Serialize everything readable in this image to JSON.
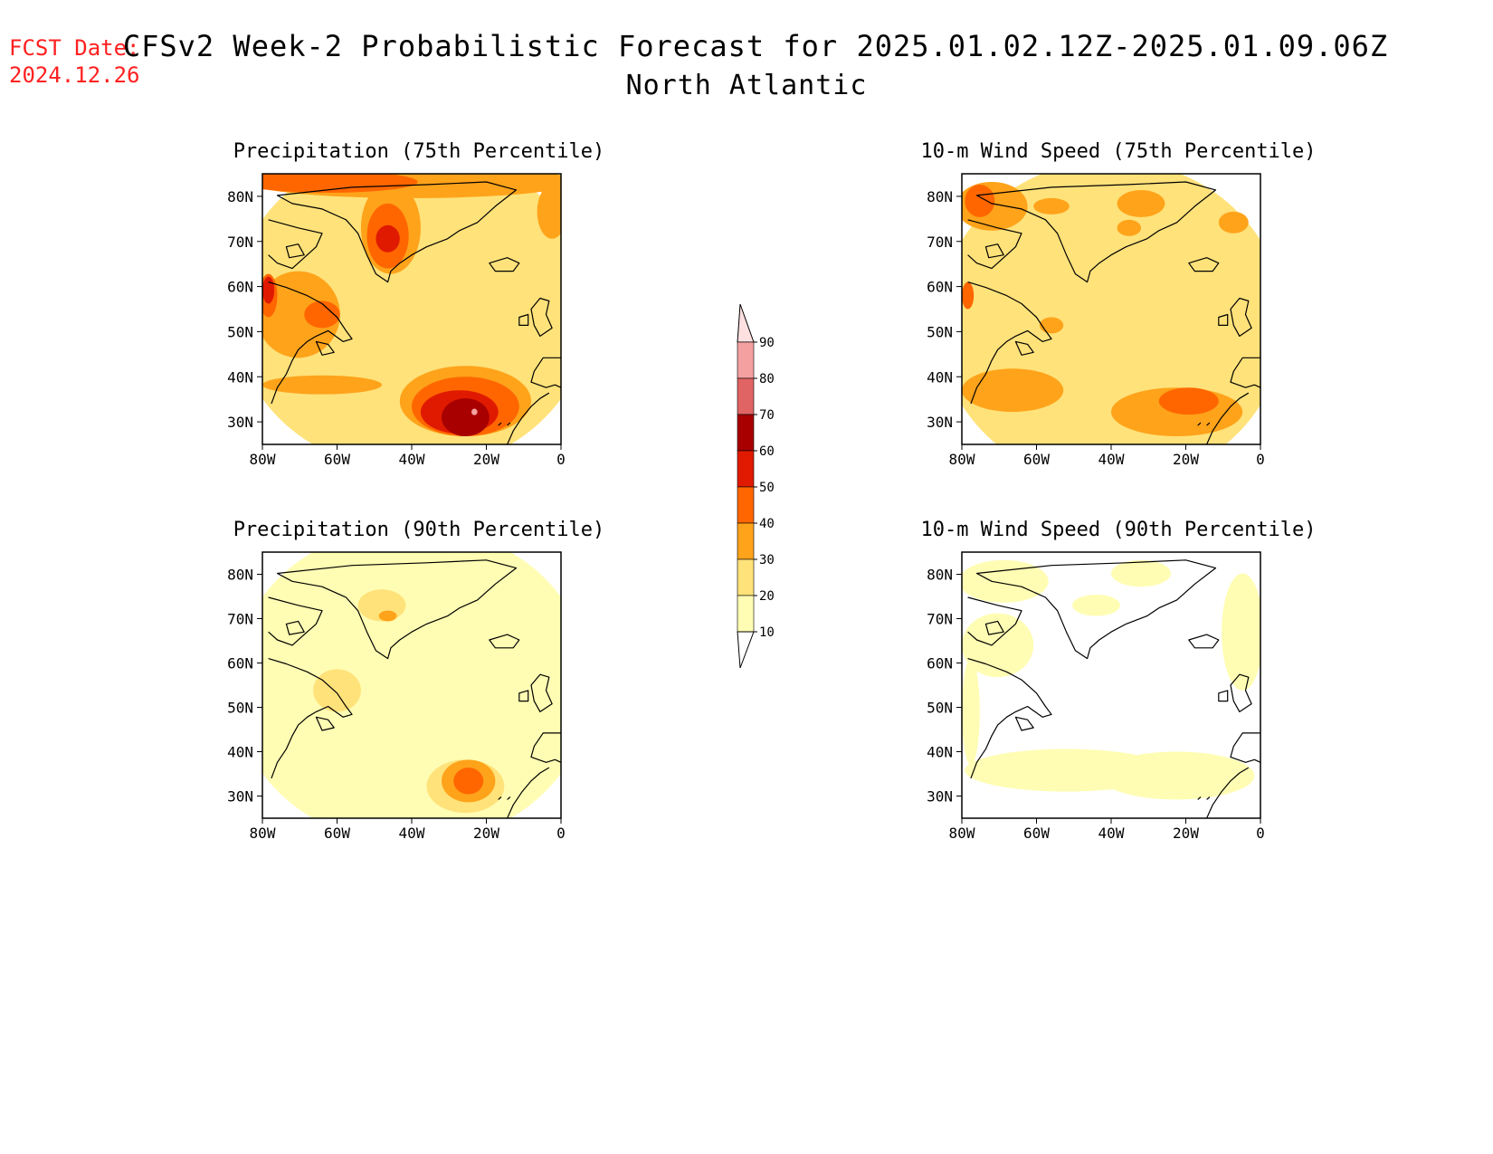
{
  "header": {
    "fcst_label": "FCST Date:",
    "fcst_date": "2024.12.26",
    "title": "CFSv2 Week-2 Probabilistic Forecast for 2025.01.02.12Z-2025.01.09.06Z",
    "region": "North Atlantic"
  },
  "panels": [
    {
      "id": "precip-75",
      "title": "Precipitation (75th Percentile)"
    },
    {
      "id": "wind-75",
      "title": "10-m Wind Speed (75th Percentile)"
    },
    {
      "id": "precip-90",
      "title": "Precipitation (90th Percentile)"
    },
    {
      "id": "wind-90",
      "title": "10-m Wind Speed (90th Percentile)"
    }
  ],
  "axes": {
    "lat_labels": [
      "80N",
      "70N",
      "60N",
      "50N",
      "40N",
      "30N"
    ],
    "lon_labels": [
      "80W",
      "60W",
      "40W",
      "20W",
      "0"
    ]
  },
  "colorbar": {
    "levels": [
      "10",
      "20",
      "30",
      "40",
      "50",
      "60",
      "70",
      "80",
      "90"
    ],
    "colors": [
      "#fffdb3",
      "#ffe27a",
      "#ffa31a",
      "#ff6600",
      "#e01a00",
      "#a80000",
      "#e06464",
      "#f4a0a0",
      "#ffe0e0"
    ]
  }
}
